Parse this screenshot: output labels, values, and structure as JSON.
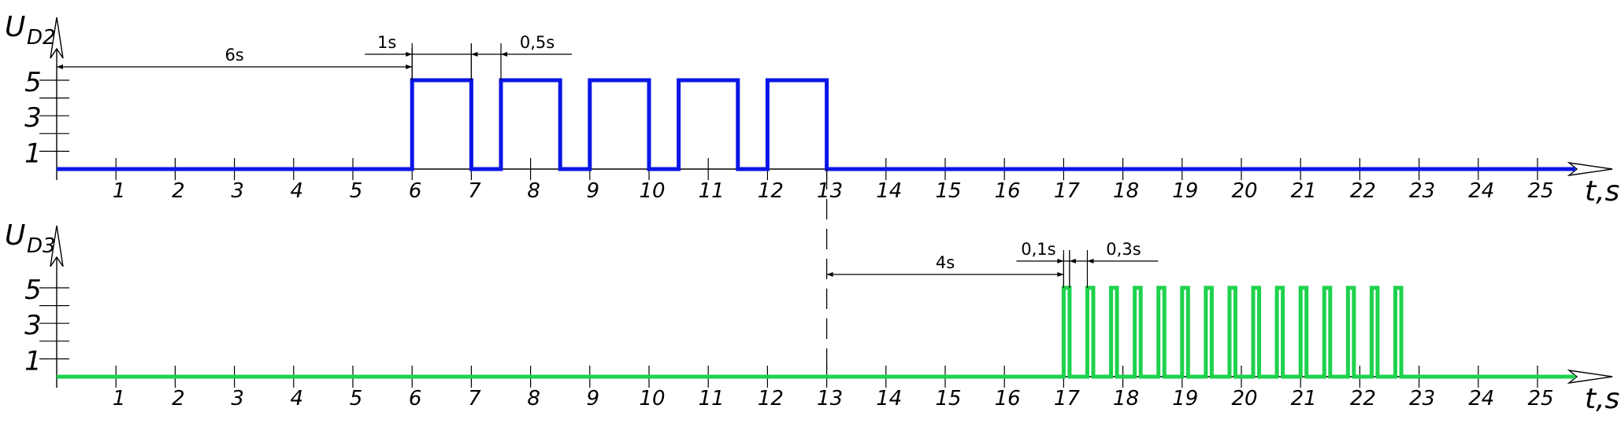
{
  "chart_data": [
    {
      "type": "line",
      "signal": "square-wave",
      "ylabel": "U",
      "ylabel_sub": "D2",
      "xlabel": "t,s",
      "color": "#0a16e6",
      "xlim": [
        0,
        25
      ],
      "x_ticks": [
        "1",
        "2",
        "3",
        "4",
        "5",
        "6",
        "7",
        "8",
        "9",
        "10",
        "11",
        "12",
        "13",
        "14",
        "15",
        "16",
        "17",
        "18",
        "19",
        "20",
        "21",
        "22",
        "23",
        "24",
        "25"
      ],
      "y_ticks": [
        "1",
        "3",
        "5"
      ],
      "pulses": [
        [
          6,
          7
        ],
        [
          7.5,
          8.5
        ],
        [
          9,
          10
        ],
        [
          10.5,
          11.5
        ],
        [
          12,
          13
        ]
      ],
      "high": 5,
      "low": 0,
      "annotations": [
        {
          "label": "6s",
          "from": 0,
          "to": 6
        },
        {
          "label": "1s",
          "from": 6,
          "to": 7
        },
        {
          "label": "0,5s",
          "from": 7,
          "to": 7.5
        }
      ]
    },
    {
      "type": "line",
      "signal": "square-wave",
      "ylabel": "U",
      "ylabel_sub": "D3",
      "xlabel": "t,s",
      "color": "#1ed24c",
      "xlim": [
        0,
        25
      ],
      "x_ticks": [
        "1",
        "2",
        "3",
        "4",
        "5",
        "6",
        "7",
        "8",
        "9",
        "10",
        "11",
        "12",
        "13",
        "14",
        "15",
        "16",
        "17",
        "18",
        "19",
        "20",
        "21",
        "22",
        "23",
        "24",
        "25"
      ],
      "y_ticks": [
        "1",
        "3",
        "5"
      ],
      "pulse_start": 17,
      "pulse_width": 0.1,
      "pulse_gap": 0.3,
      "pulse_count": 15,
      "high": 5,
      "low": 0,
      "annotations": [
        {
          "label": "4s",
          "from": 13,
          "to": 17
        },
        {
          "label": "0,1s",
          "from": 17,
          "to": 17.1
        },
        {
          "label": "0,3s",
          "from": 17.1,
          "to": 17.4
        }
      ]
    }
  ],
  "marker_line_x": 13
}
